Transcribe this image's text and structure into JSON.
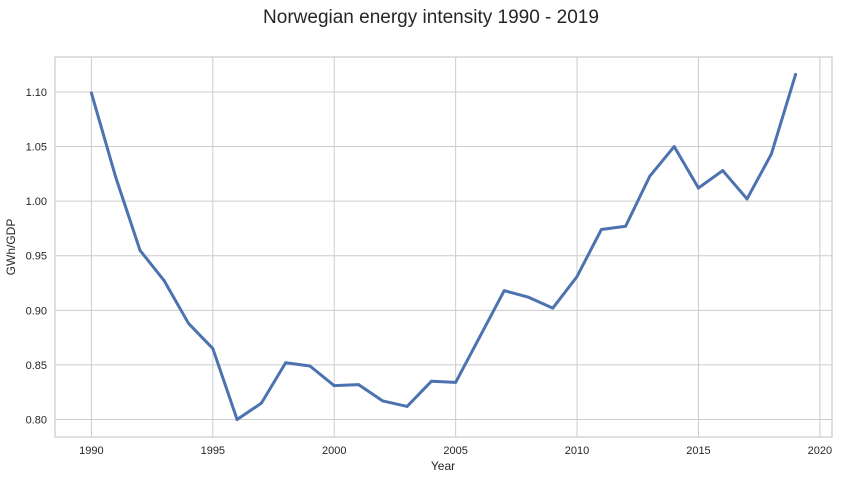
{
  "chart_data": {
    "type": "line",
    "title": "Norwegian energy intensity 1990 - 2019",
    "xlabel": "Year",
    "ylabel": "GWh/GDP",
    "xlim": [
      1988.5,
      2020.5
    ],
    "ylim": [
      0.784,
      1.132
    ],
    "xticks": [
      1990,
      1995,
      2000,
      2005,
      2010,
      2015,
      2020
    ],
    "yticks": [
      0.8,
      0.85,
      0.9,
      0.95,
      1.0,
      1.05,
      1.1
    ],
    "grid": true,
    "colors": {
      "series": "#4c72b0",
      "grid": "#cccccc",
      "text": "#262626"
    },
    "series": [
      {
        "x": [
          1990,
          1991,
          1992,
          1993,
          1994,
          1995,
          1996,
          1997,
          1998,
          1999,
          2000,
          2001,
          2002,
          2003,
          2004,
          2005,
          2006,
          2007,
          2008,
          2009,
          2010,
          2011,
          2012,
          2013,
          2014,
          2015,
          2016,
          2017,
          2018,
          2019
        ],
        "y": [
          1.099,
          1.022,
          0.955,
          0.927,
          0.888,
          0.865,
          0.8,
          0.815,
          0.852,
          0.849,
          0.831,
          0.832,
          0.817,
          0.812,
          0.835,
          0.834,
          0.876,
          0.918,
          0.912,
          0.902,
          0.931,
          0.974,
          0.977,
          1.023,
          1.05,
          1.012,
          1.028,
          1.002,
          1.043,
          1.116
        ]
      }
    ]
  }
}
